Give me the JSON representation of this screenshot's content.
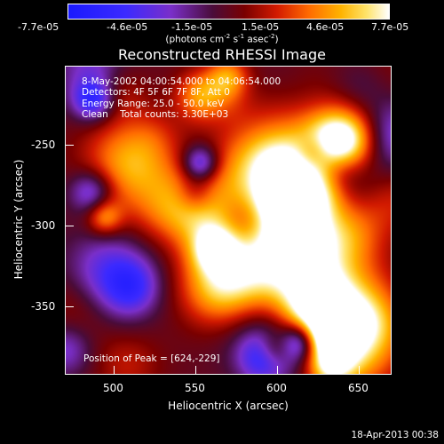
{
  "colorbar": {
    "tick_labels": [
      "-7.7e-05",
      "-4.6e-05",
      "-1.5e-05",
      "1.5e-05",
      "4.6e-05",
      "7.7e-05"
    ],
    "units_prefix": "(photons cm",
    "units_exp1": "-2",
    "units_mid": " s",
    "units_exp2": "-1",
    "units_mid2": " asec",
    "units_exp3": "-2",
    "units_suffix": ")"
  },
  "title": "Reconstructed RHESSI Image",
  "annotations": {
    "line1": "8-May-2002 04:00:54.000 to 04:06:54.000",
    "line2": "Detectors: 4F 5F 6F 7F 8F, Att 0",
    "line3": "Energy Range: 25.0 - 50.0 keV",
    "line4": "Clean    Total counts: 3.30E+03",
    "peak": "Position of Peak = [624,-229]"
  },
  "axes": {
    "xlabel": "Heliocentric X (arcsec)",
    "ylabel": "Heliocentric Y (arcsec)",
    "x_ticks": [
      "500",
      "550",
      "600",
      "650"
    ],
    "y_ticks": [
      "-250",
      "-300",
      "-350"
    ]
  },
  "timestamp": "18-Apr-2013 00:38"
}
